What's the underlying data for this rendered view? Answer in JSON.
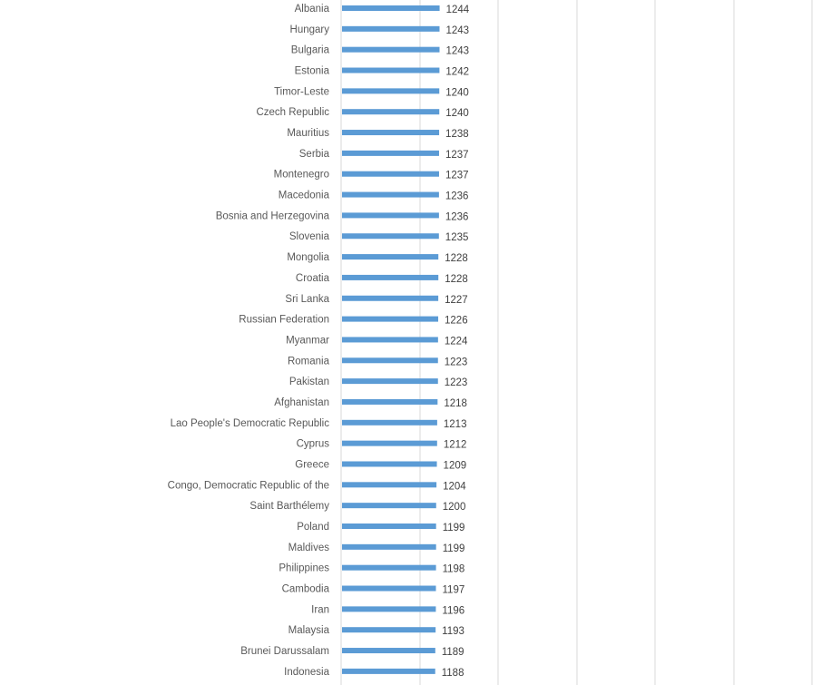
{
  "chart_data": {
    "type": "bar",
    "orientation": "horizontal",
    "categories": [
      "Albania",
      "Hungary",
      "Bulgaria",
      "Estonia",
      "Timor-Leste",
      "Czech Republic",
      "Mauritius",
      "Serbia",
      "Montenegro",
      "Macedonia",
      "Bosnia and Herzegovina",
      "Slovenia",
      "Mongolia",
      "Croatia",
      "Sri Lanka",
      "Russian Federation",
      "Myanmar",
      "Romania",
      "Pakistan",
      "Afghanistan",
      "Lao People's Democratic Republic",
      "Cyprus",
      "Greece",
      "Congo, Democratic Republic of the",
      "Saint Barthélemy",
      "Poland",
      "Maldives",
      "Philippines",
      "Cambodia",
      "Iran",
      "Malaysia",
      "Brunei Darussalam",
      "Indonesia"
    ],
    "values": [
      1244,
      1243,
      1243,
      1242,
      1240,
      1240,
      1238,
      1237,
      1237,
      1236,
      1236,
      1235,
      1228,
      1228,
      1227,
      1226,
      1224,
      1223,
      1223,
      1218,
      1213,
      1212,
      1209,
      1204,
      1200,
      1199,
      1199,
      1198,
      1197,
      1196,
      1193,
      1189,
      1188
    ],
    "bar_color": "#5b9bd5",
    "grid_color": "#d9d9d9",
    "grid": true,
    "data_labels": true,
    "title": "",
    "xlabel": "",
    "ylabel": ""
  }
}
